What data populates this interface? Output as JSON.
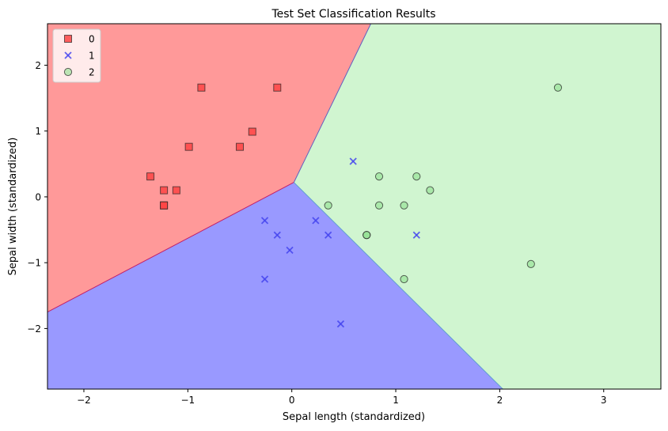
{
  "chart_data": {
    "type": "scatter",
    "title": "Test Set Classification Results",
    "xlabel": "Sepal length (standardized)",
    "ylabel": "Sepal width (standardized)",
    "xlim": [
      -2.35,
      3.55
    ],
    "ylim": [
      -2.92,
      2.63
    ],
    "xticks": [
      -2,
      -1,
      0,
      1,
      2,
      3
    ],
    "yticks": [
      -2,
      -1,
      0,
      1,
      2
    ],
    "xtick_labels": [
      "−2",
      "−1",
      "0",
      "1",
      "2",
      "3"
    ],
    "ytick_labels": [
      "−2",
      "−1",
      "0",
      "1",
      "2"
    ],
    "grid": false,
    "legend_position": "upper left",
    "decision_regions": [
      {
        "class": "0",
        "color": "#ff9999",
        "polygon": [
          [
            -2.35,
            2.63
          ],
          [
            0.76,
            2.63
          ],
          [
            0.02,
            0.22
          ],
          [
            -2.35,
            -1.75
          ]
        ]
      },
      {
        "class": "1",
        "color": "#9999ff",
        "polygon": [
          [
            -2.35,
            -1.75
          ],
          [
            0.02,
            0.22
          ],
          [
            2.03,
            -2.92
          ],
          [
            -2.35,
            -2.92
          ]
        ]
      },
      {
        "class": "2",
        "color": "#d0f5d0",
        "polygon": [
          [
            0.76,
            2.63
          ],
          [
            3.55,
            2.63
          ],
          [
            3.55,
            -2.92
          ],
          [
            2.03,
            -2.92
          ],
          [
            0.02,
            0.22
          ]
        ]
      }
    ],
    "series": [
      {
        "name": "0",
        "marker": "square",
        "color": "#ff4444",
        "points": [
          [
            -0.87,
            1.66
          ],
          [
            -0.14,
            1.66
          ],
          [
            -0.38,
            0.99
          ],
          [
            -0.99,
            0.76
          ],
          [
            -0.5,
            0.76
          ],
          [
            -1.36,
            0.31
          ],
          [
            -1.23,
            0.1
          ],
          [
            -1.11,
            0.1
          ],
          [
            -1.23,
            -0.13
          ],
          [
            -1.23,
            -0.13
          ]
        ]
      },
      {
        "name": "1",
        "marker": "x",
        "color": "#4444ee",
        "points": [
          [
            0.59,
            0.54
          ],
          [
            -0.26,
            -0.36
          ],
          [
            0.23,
            -0.36
          ],
          [
            -0.14,
            -0.58
          ],
          [
            0.35,
            -0.58
          ],
          [
            -0.02,
            -0.81
          ],
          [
            -0.26,
            -1.25
          ],
          [
            0.47,
            -1.93
          ],
          [
            1.2,
            -0.58
          ]
        ]
      },
      {
        "name": "2",
        "marker": "circle",
        "color": "#90e090",
        "points": [
          [
            2.56,
            1.66
          ],
          [
            0.84,
            0.31
          ],
          [
            1.2,
            0.31
          ],
          [
            1.33,
            0.1
          ],
          [
            0.35,
            -0.13
          ],
          [
            0.84,
            -0.13
          ],
          [
            1.08,
            -0.13
          ],
          [
            0.72,
            -0.58
          ],
          [
            0.72,
            -0.58
          ],
          [
            1.08,
            -1.25
          ],
          [
            2.3,
            -1.02
          ]
        ]
      }
    ]
  },
  "legend": {
    "items": [
      {
        "label": "0",
        "marker": "square"
      },
      {
        "label": "1",
        "marker": "x"
      },
      {
        "label": "2",
        "marker": "circle"
      }
    ]
  }
}
